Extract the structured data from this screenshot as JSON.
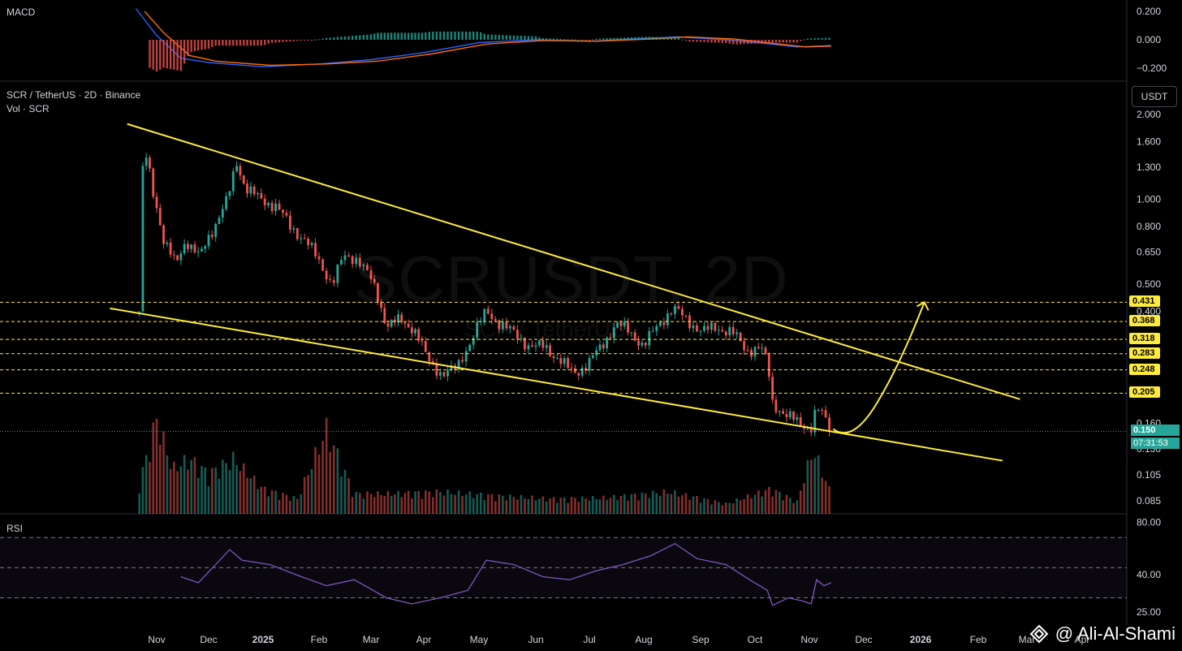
{
  "header": {
    "macd_title": "MACD",
    "pair_title": "SCR / TetherUS · 2D · Binance",
    "vol_title": "Vol · SCR",
    "rsi_title": "RSI",
    "unit": "USDT"
  },
  "watermark": {
    "symbol": "SCRUSDT, 2D",
    "name": "SCR / TetherUS"
  },
  "credit": "@ Ali-Al-Shami",
  "current_price": {
    "value": "0.150",
    "countdown": "07:31:53"
  },
  "colors": {
    "up": "#26a69a",
    "down": "#ef5350",
    "trendline": "#ffeb3b",
    "macd_line": "#2962ff",
    "signal_line": "#ff6d00",
    "rsi_line": "#7e57c2"
  },
  "chart_data": [
    {
      "type": "candlestick",
      "title": "SCR / TetherUS · 2D · Binance",
      "y_scale": "log",
      "ylim": [
        0.08,
        2.0
      ],
      "y_ticks": [
        "2.000",
        "1.600",
        "1.300",
        "1.000",
        "0.800",
        "0.650",
        "0.500",
        "0.400",
        "0.160",
        "0.130",
        "0.105",
        "0.085"
      ],
      "x_ticks": [
        "Nov",
        "Dec",
        "2025",
        "Feb",
        "Mar",
        "Apr",
        "May",
        "Jun",
        "Jul",
        "Aug",
        "Sep",
        "Oct",
        "Nov",
        "Dec",
        "2026",
        "Feb",
        "Mar",
        "Apr"
      ],
      "x_range": [
        "2024-10-22",
        "2025-11-13"
      ],
      "close_path": [
        [
          "2024-10-22",
          0.4
        ],
        [
          "2024-10-23",
          1.2
        ],
        [
          "2024-10-26",
          1.4
        ],
        [
          "2024-10-30",
          1.05
        ],
        [
          "2024-11-05",
          0.72
        ],
        [
          "2024-11-12",
          0.58
        ],
        [
          "2024-11-18",
          0.72
        ],
        [
          "2024-11-26",
          0.62
        ],
        [
          "2024-12-04",
          0.8
        ],
        [
          "2024-12-12",
          1.0
        ],
        [
          "2024-12-17",
          1.35
        ],
        [
          "2024-12-22",
          1.1
        ],
        [
          "2024-12-30",
          1.0
        ],
        [
          "2025-01-08",
          0.95
        ],
        [
          "2025-01-16",
          0.8
        ],
        [
          "2025-01-24",
          0.72
        ],
        [
          "2025-02-01",
          0.6
        ],
        [
          "2025-02-08",
          0.5
        ],
        [
          "2025-02-14",
          0.62
        ],
        [
          "2025-02-22",
          0.62
        ],
        [
          "2025-03-02",
          0.5
        ],
        [
          "2025-03-10",
          0.36
        ],
        [
          "2025-03-18",
          0.37
        ],
        [
          "2025-03-26",
          0.35
        ],
        [
          "2025-04-03",
          0.27
        ],
        [
          "2025-04-11",
          0.24
        ],
        [
          "2025-04-19",
          0.25
        ],
        [
          "2025-04-27",
          0.32
        ],
        [
          "2025-05-05",
          0.4
        ],
        [
          "2025-05-13",
          0.36
        ],
        [
          "2025-05-21",
          0.33
        ],
        [
          "2025-05-29",
          0.3
        ],
        [
          "2025-06-06",
          0.3
        ],
        [
          "2025-06-14",
          0.27
        ],
        [
          "2025-06-22",
          0.24
        ],
        [
          "2025-06-30",
          0.26
        ],
        [
          "2025-07-08",
          0.3
        ],
        [
          "2025-07-16",
          0.36
        ],
        [
          "2025-07-24",
          0.34
        ],
        [
          "2025-08-01",
          0.3
        ],
        [
          "2025-08-09",
          0.36
        ],
        [
          "2025-08-17",
          0.41
        ],
        [
          "2025-08-25",
          0.37
        ],
        [
          "2025-09-02",
          0.34
        ],
        [
          "2025-09-10",
          0.35
        ],
        [
          "2025-09-18",
          0.34
        ],
        [
          "2025-09-26",
          0.29
        ],
        [
          "2025-10-04",
          0.3
        ],
        [
          "2025-10-08",
          0.26
        ],
        [
          "2025-10-11",
          0.19
        ],
        [
          "2025-10-19",
          0.17
        ],
        [
          "2025-10-27",
          0.16
        ],
        [
          "2025-11-02",
          0.155
        ],
        [
          "2025-11-05",
          0.18
        ],
        [
          "2025-11-09",
          0.17
        ],
        [
          "2025-11-13",
          0.15
        ]
      ],
      "volume_path": [
        [
          "2024-10-22",
          0.3
        ],
        [
          "2024-11-01",
          0.95
        ],
        [
          "2024-11-10",
          0.45
        ],
        [
          "2024-11-20",
          0.55
        ],
        [
          "2024-12-01",
          0.4
        ],
        [
          "2024-12-15",
          0.55
        ],
        [
          "2025-01-01",
          0.25
        ],
        [
          "2025-01-20",
          0.15
        ],
        [
          "2025-02-05",
          0.85
        ],
        [
          "2025-02-20",
          0.2
        ],
        [
          "2025-03-10",
          0.2
        ],
        [
          "2025-04-10",
          0.22
        ],
        [
          "2025-05-10",
          0.18
        ],
        [
          "2025-06-10",
          0.15
        ],
        [
          "2025-07-10",
          0.16
        ],
        [
          "2025-08-15",
          0.22
        ],
        [
          "2025-09-15",
          0.1
        ],
        [
          "2025-10-10",
          0.25
        ],
        [
          "2025-10-25",
          0.12
        ],
        [
          "2025-11-03",
          0.65
        ],
        [
          "2025-11-13",
          0.2
        ]
      ],
      "horizontal_levels": [
        "0.431",
        "0.368",
        "0.318",
        "0.283",
        "0.248",
        "0.205"
      ],
      "trendlines": [
        {
          "from": [
            "2024-10-15",
            1.85
          ],
          "to": [
            "2026-02-25",
            0.195
          ]
        },
        {
          "from": [
            "2024-10-05",
            0.41
          ],
          "to": [
            "2026-02-15",
            0.118
          ]
        }
      ],
      "projection": {
        "from": [
          "2025-11-15",
          0.145
        ],
        "to": [
          "2026-01-03",
          0.431
        ]
      }
    },
    {
      "type": "line",
      "title": "MACD",
      "y_ticks": [
        "0.200",
        "0.000",
        "−0.200"
      ],
      "ylim": [
        -0.25,
        0.25
      ],
      "series": [
        {
          "values": [
            [
              "2024-10-20",
              0.22
            ],
            [
              "2024-11-01",
              0.03
            ],
            [
              "2024-11-15",
              -0.13
            ],
            [
              "2024-12-01",
              -0.16
            ],
            [
              "2025-01-01",
              -0.19
            ],
            [
              "2025-02-01",
              -0.17
            ],
            [
              "2025-03-01",
              -0.14
            ],
            [
              "2025-04-01",
              -0.09
            ],
            [
              "2025-05-01",
              -0.02
            ],
            [
              "2025-06-01",
              0.0
            ],
            [
              "2025-07-01",
              -0.01
            ],
            [
              "2025-08-01",
              0.01
            ],
            [
              "2025-08-20",
              0.02
            ],
            [
              "2025-09-15",
              0.0
            ],
            [
              "2025-10-10",
              -0.03
            ],
            [
              "2025-10-25",
              -0.05
            ],
            [
              "2025-11-13",
              -0.04
            ]
          ]
        },
        {
          "values": [
            [
              "2024-10-25",
              0.2
            ],
            [
              "2024-11-05",
              0.05
            ],
            [
              "2024-11-20",
              -0.11
            ],
            [
              "2024-12-05",
              -0.15
            ],
            [
              "2025-01-05",
              -0.18
            ],
            [
              "2025-02-05",
              -0.17
            ],
            [
              "2025-03-05",
              -0.15
            ],
            [
              "2025-04-05",
              -0.1
            ],
            [
              "2025-05-05",
              -0.03
            ],
            [
              "2025-06-05",
              -0.005
            ],
            [
              "2025-07-05",
              -0.01
            ],
            [
              "2025-08-05",
              0.005
            ],
            [
              "2025-08-25",
              0.02
            ],
            [
              "2025-09-20",
              0.005
            ],
            [
              "2025-10-15",
              -0.03
            ],
            [
              "2025-10-30",
              -0.05
            ],
            [
              "2025-11-13",
              -0.045
            ]
          ]
        }
      ]
    },
    {
      "type": "line",
      "title": "RSI",
      "y_ticks": [
        "80.00",
        "40.00",
        "25.00"
      ],
      "ylim": [
        20,
        82
      ],
      "bands": [
        70,
        50,
        30
      ],
      "series": [
        {
          "values": [
            [
              "2024-11-15",
              44
            ],
            [
              "2024-11-25",
              40
            ],
            [
              "2024-12-05",
              52
            ],
            [
              "2024-12-13",
              62
            ],
            [
              "2024-12-20",
              55
            ],
            [
              "2025-01-05",
              52
            ],
            [
              "2025-01-20",
              45
            ],
            [
              "2025-02-05",
              38
            ],
            [
              "2025-02-20",
              42
            ],
            [
              "2025-03-10",
              30
            ],
            [
              "2025-03-25",
              26
            ],
            [
              "2025-04-10",
              30
            ],
            [
              "2025-04-25",
              35
            ],
            [
              "2025-05-05",
              55
            ],
            [
              "2025-05-20",
              52
            ],
            [
              "2025-06-05",
              44
            ],
            [
              "2025-06-20",
              42
            ],
            [
              "2025-07-05",
              48
            ],
            [
              "2025-07-20",
              52
            ],
            [
              "2025-08-05",
              58
            ],
            [
              "2025-08-18",
              66
            ],
            [
              "2025-08-30",
              56
            ],
            [
              "2025-09-15",
              52
            ],
            [
              "2025-09-28",
              42
            ],
            [
              "2025-10-08",
              35
            ],
            [
              "2025-10-11",
              25
            ],
            [
              "2025-10-20",
              30
            ],
            [
              "2025-10-28",
              28
            ],
            [
              "2025-11-02",
              26
            ],
            [
              "2025-11-05",
              42
            ],
            [
              "2025-11-09",
              38
            ],
            [
              "2025-11-13",
              40
            ]
          ]
        }
      ]
    }
  ]
}
